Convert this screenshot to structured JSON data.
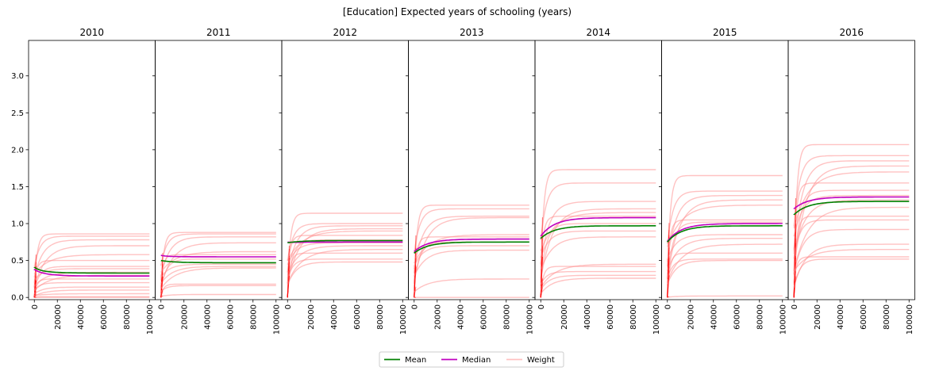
{
  "chart_data": {
    "type": "line",
    "title": "[Education] Expected years of schooling (years)",
    "sharey": true,
    "ylim": [
      -0.03,
      3.48
    ],
    "y_ticks": [
      0.0,
      0.5,
      1.0,
      1.5,
      2.0,
      2.5,
      3.0
    ],
    "y_tick_labels": [
      "0.0",
      "0.5",
      "1.0",
      "1.5",
      "2.0",
      "2.5",
      "3.0"
    ],
    "xlim": [
      -5000,
      105000
    ],
    "x_ticks": [
      0,
      20000,
      40000,
      60000,
      80000,
      100000
    ],
    "x_tick_labels": [
      "0",
      "20000",
      "40000",
      "60000",
      "80000",
      "100000"
    ],
    "x_tick_rotation": 90,
    "legend": {
      "placement": "bottom-center",
      "entries": [
        {
          "label": "Mean",
          "color": "#008000"
        },
        {
          "label": "Median",
          "color": "#c000c0"
        },
        {
          "label": "Weight",
          "color": "#ffc0c0"
        }
      ]
    },
    "colors": {
      "mean": "#008000",
      "median": "#c000c0",
      "weight": "#ff9090",
      "weight_early": "#ff0000"
    },
    "panels": [
      {
        "title": "2010",
        "mean": {
          "start": 0.38,
          "peak": 0.41,
          "end": 0.33
        },
        "median": {
          "start": 0.36,
          "peak": 0.38,
          "end": 0.29
        },
        "weight_levels": [
          0.86,
          0.83,
          0.78,
          0.7,
          0.58,
          0.5,
          0.42,
          0.39,
          0.34,
          0.3,
          0.25,
          0.2,
          0.14,
          0.1,
          0.05,
          0.01,
          0.0
        ]
      },
      {
        "title": "2011",
        "mean": {
          "start": 0.5,
          "peak": 0.5,
          "end": 0.47
        },
        "median": {
          "start": 0.56,
          "peak": 0.57,
          "end": 0.55
        },
        "weight_levels": [
          0.88,
          0.86,
          0.82,
          0.74,
          0.62,
          0.58,
          0.52,
          0.45,
          0.42,
          0.4,
          0.18,
          0.16,
          0.04
        ]
      },
      {
        "title": "2012",
        "mean": {
          "start": 0.74,
          "peak": 0.77,
          "end": 0.77
        },
        "median": {
          "start": 0.74,
          "peak": 0.76,
          "end": 0.75
        },
        "weight_levels": [
          1.14,
          1.0,
          0.97,
          0.93,
          0.9,
          0.84,
          0.78,
          0.74,
          0.7,
          0.65,
          0.6,
          0.52,
          0.48
        ]
      },
      {
        "title": "2013",
        "mean": {
          "start": 0.6,
          "peak": 0.6,
          "end": 0.75
        },
        "median": {
          "start": 0.62,
          "peak": 0.62,
          "end": 0.79
        },
        "weight_levels": [
          1.25,
          1.2,
          1.1,
          1.08,
          0.85,
          0.82,
          0.75,
          0.7,
          0.64,
          0.25,
          0.0
        ]
      },
      {
        "title": "2014",
        "mean": {
          "start": 0.8,
          "peak": 0.8,
          "end": 0.97
        },
        "median": {
          "start": 0.83,
          "peak": 0.83,
          "end": 1.08
        },
        "weight_levels": [
          1.73,
          1.55,
          1.3,
          1.2,
          1.15,
          1.1,
          1.0,
          0.9,
          0.82,
          0.45,
          0.42,
          0.35,
          0.3,
          0.26
        ]
      },
      {
        "title": "2015",
        "mean": {
          "start": 0.75,
          "peak": 0.75,
          "end": 0.97
        },
        "median": {
          "start": 0.76,
          "peak": 0.76,
          "end": 1.0
        },
        "weight_levels": [
          1.65,
          1.44,
          1.38,
          1.32,
          1.25,
          1.05,
          1.02,
          0.85,
          0.8,
          0.72,
          0.6,
          0.52,
          0.5,
          0.02
        ]
      },
      {
        "title": "2016",
        "mean": {
          "start": 1.12,
          "peak": 1.12,
          "end": 1.3
        },
        "median": {
          "start": 1.2,
          "peak": 1.2,
          "end": 1.36
        },
        "weight_levels": [
          2.07,
          1.92,
          1.85,
          1.78,
          1.7,
          1.55,
          1.45,
          1.38,
          1.32,
          1.22,
          1.1,
          1.05,
          0.92,
          0.72,
          0.65,
          0.55,
          0.52
        ]
      }
    ]
  }
}
